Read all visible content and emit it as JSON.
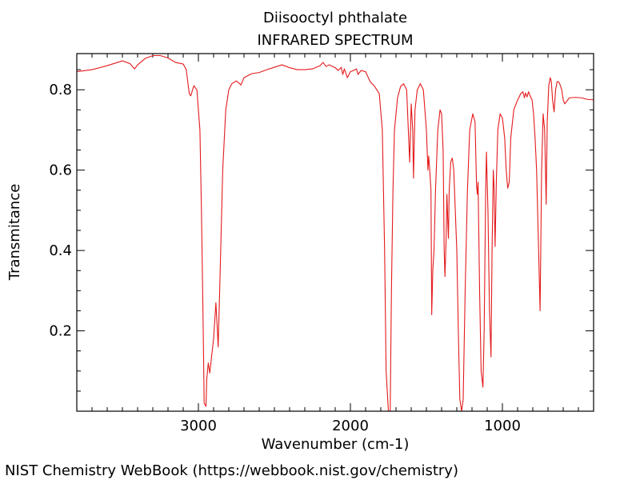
{
  "chart_data": {
    "type": "line",
    "title": "Diisooctyl phthalate",
    "subtitle": "INFRARED SPECTRUM",
    "xlabel": "Wavenumber (cm-1)",
    "ylabel": "Transmitance",
    "xlim": [
      3800,
      400
    ],
    "ylim": [
      0,
      0.89
    ],
    "x_major_ticks": [
      3000,
      2000,
      1000
    ],
    "x_tick_labels": [
      "3000",
      "2000",
      "1000"
    ],
    "y_major_ticks": [
      0.2,
      0.4,
      0.6,
      0.8
    ],
    "y_tick_labels": [
      "0.2",
      "0.4",
      "0.6",
      "0.8"
    ],
    "series": [
      {
        "name": "Diisooctyl phthalate",
        "color": "#e41a1c",
        "points": [
          [
            3800,
            0.845
          ],
          [
            3700,
            0.85
          ],
          [
            3600,
            0.86
          ],
          [
            3500,
            0.872
          ],
          [
            3450,
            0.865
          ],
          [
            3420,
            0.852
          ],
          [
            3400,
            0.862
          ],
          [
            3350,
            0.878
          ],
          [
            3300,
            0.885
          ],
          [
            3250,
            0.885
          ],
          [
            3200,
            0.879
          ],
          [
            3150,
            0.868
          ],
          [
            3100,
            0.864
          ],
          [
            3080,
            0.85
          ],
          [
            3060,
            0.79
          ],
          [
            3050,
            0.785
          ],
          [
            3030,
            0.81
          ],
          [
            3010,
            0.8
          ],
          [
            2990,
            0.7
          ],
          [
            2980,
            0.5
          ],
          [
            2970,
            0.25
          ],
          [
            2962,
            0.02
          ],
          [
            2950,
            0.012
          ],
          [
            2945,
            0.08
          ],
          [
            2935,
            0.12
          ],
          [
            2925,
            0.095
          ],
          [
            2915,
            0.13
          ],
          [
            2900,
            0.18
          ],
          [
            2885,
            0.27
          ],
          [
            2875,
            0.2
          ],
          [
            2870,
            0.16
          ],
          [
            2860,
            0.3
          ],
          [
            2840,
            0.6
          ],
          [
            2820,
            0.75
          ],
          [
            2800,
            0.8
          ],
          [
            2780,
            0.815
          ],
          [
            2750,
            0.822
          ],
          [
            2720,
            0.812
          ],
          [
            2700,
            0.83
          ],
          [
            2650,
            0.84
          ],
          [
            2600,
            0.843
          ],
          [
            2550,
            0.85
          ],
          [
            2500,
            0.856
          ],
          [
            2450,
            0.862
          ],
          [
            2400,
            0.855
          ],
          [
            2350,
            0.85
          ],
          [
            2300,
            0.85
          ],
          [
            2250,
            0.852
          ],
          [
            2200,
            0.86
          ],
          [
            2180,
            0.868
          ],
          [
            2160,
            0.858
          ],
          [
            2140,
            0.862
          ],
          [
            2100,
            0.855
          ],
          [
            2080,
            0.848
          ],
          [
            2060,
            0.856
          ],
          [
            2050,
            0.838
          ],
          [
            2040,
            0.852
          ],
          [
            2020,
            0.83
          ],
          [
            2000,
            0.845
          ],
          [
            1980,
            0.848
          ],
          [
            1960,
            0.852
          ],
          [
            1950,
            0.838
          ],
          [
            1930,
            0.848
          ],
          [
            1900,
            0.845
          ],
          [
            1870,
            0.82
          ],
          [
            1840,
            0.808
          ],
          [
            1810,
            0.79
          ],
          [
            1790,
            0.7
          ],
          [
            1775,
            0.4
          ],
          [
            1765,
            0.1
          ],
          [
            1750,
            0.0
          ],
          [
            1738,
            0.0
          ],
          [
            1730,
            0.3
          ],
          [
            1720,
            0.55
          ],
          [
            1710,
            0.7
          ],
          [
            1690,
            0.78
          ],
          [
            1670,
            0.808
          ],
          [
            1650,
            0.815
          ],
          [
            1630,
            0.8
          ],
          [
            1610,
            0.62
          ],
          [
            1600,
            0.765
          ],
          [
            1590,
            0.7
          ],
          [
            1585,
            0.58
          ],
          [
            1575,
            0.75
          ],
          [
            1560,
            0.8
          ],
          [
            1540,
            0.815
          ],
          [
            1520,
            0.8
          ],
          [
            1500,
            0.7
          ],
          [
            1490,
            0.6
          ],
          [
            1485,
            0.635
          ],
          [
            1478,
            0.6
          ],
          [
            1470,
            0.55
          ],
          [
            1465,
            0.24
          ],
          [
            1458,
            0.35
          ],
          [
            1450,
            0.4
          ],
          [
            1440,
            0.55
          ],
          [
            1425,
            0.7
          ],
          [
            1410,
            0.75
          ],
          [
            1400,
            0.74
          ],
          [
            1390,
            0.65
          ],
          [
            1383,
            0.4
          ],
          [
            1378,
            0.335
          ],
          [
            1370,
            0.43
          ],
          [
            1365,
            0.54
          ],
          [
            1360,
            0.48
          ],
          [
            1355,
            0.43
          ],
          [
            1350,
            0.55
          ],
          [
            1340,
            0.62
          ],
          [
            1330,
            0.63
          ],
          [
            1320,
            0.6
          ],
          [
            1300,
            0.4
          ],
          [
            1290,
            0.2
          ],
          [
            1280,
            0.03
          ],
          [
            1268,
            0.0
          ],
          [
            1258,
            0.03
          ],
          [
            1245,
            0.3
          ],
          [
            1230,
            0.55
          ],
          [
            1215,
            0.7
          ],
          [
            1195,
            0.74
          ],
          [
            1180,
            0.72
          ],
          [
            1170,
            0.56
          ],
          [
            1165,
            0.54
          ],
          [
            1160,
            0.57
          ],
          [
            1150,
            0.3
          ],
          [
            1140,
            0.1
          ],
          [
            1128,
            0.06
          ],
          [
            1120,
            0.2
          ],
          [
            1110,
            0.55
          ],
          [
            1105,
            0.645
          ],
          [
            1095,
            0.5
          ],
          [
            1085,
            0.25
          ],
          [
            1075,
            0.135
          ],
          [
            1068,
            0.4
          ],
          [
            1060,
            0.6
          ],
          [
            1055,
            0.56
          ],
          [
            1048,
            0.41
          ],
          [
            1040,
            0.57
          ],
          [
            1030,
            0.7
          ],
          [
            1015,
            0.74
          ],
          [
            1000,
            0.73
          ],
          [
            985,
            0.68
          ],
          [
            975,
            0.6
          ],
          [
            965,
            0.555
          ],
          [
            955,
            0.57
          ],
          [
            945,
            0.68
          ],
          [
            925,
            0.75
          ],
          [
            905,
            0.77
          ],
          [
            880,
            0.79
          ],
          [
            865,
            0.795
          ],
          [
            855,
            0.78
          ],
          [
            848,
            0.792
          ],
          [
            838,
            0.782
          ],
          [
            828,
            0.795
          ],
          [
            818,
            0.785
          ],
          [
            805,
            0.775
          ],
          [
            795,
            0.74
          ],
          [
            785,
            0.68
          ],
          [
            775,
            0.6
          ],
          [
            765,
            0.45
          ],
          [
            752,
            0.25
          ],
          [
            742,
            0.6
          ],
          [
            732,
            0.74
          ],
          [
            722,
            0.7
          ],
          [
            712,
            0.515
          ],
          [
            705,
            0.72
          ],
          [
            695,
            0.81
          ],
          [
            685,
            0.83
          ],
          [
            678,
            0.82
          ],
          [
            670,
            0.775
          ],
          [
            660,
            0.745
          ],
          [
            650,
            0.8
          ],
          [
            640,
            0.82
          ],
          [
            630,
            0.82
          ],
          [
            620,
            0.812
          ],
          [
            610,
            0.8
          ],
          [
            600,
            0.775
          ],
          [
            590,
            0.765
          ],
          [
            580,
            0.77
          ],
          [
            560,
            0.78
          ],
          [
            520,
            0.781
          ],
          [
            480,
            0.78
          ],
          [
            440,
            0.776
          ],
          [
            400,
            0.775
          ]
        ]
      }
    ]
  },
  "footer": {
    "text": "NIST Chemistry WebBook (https://webbook.nist.gov/chemistry)"
  }
}
